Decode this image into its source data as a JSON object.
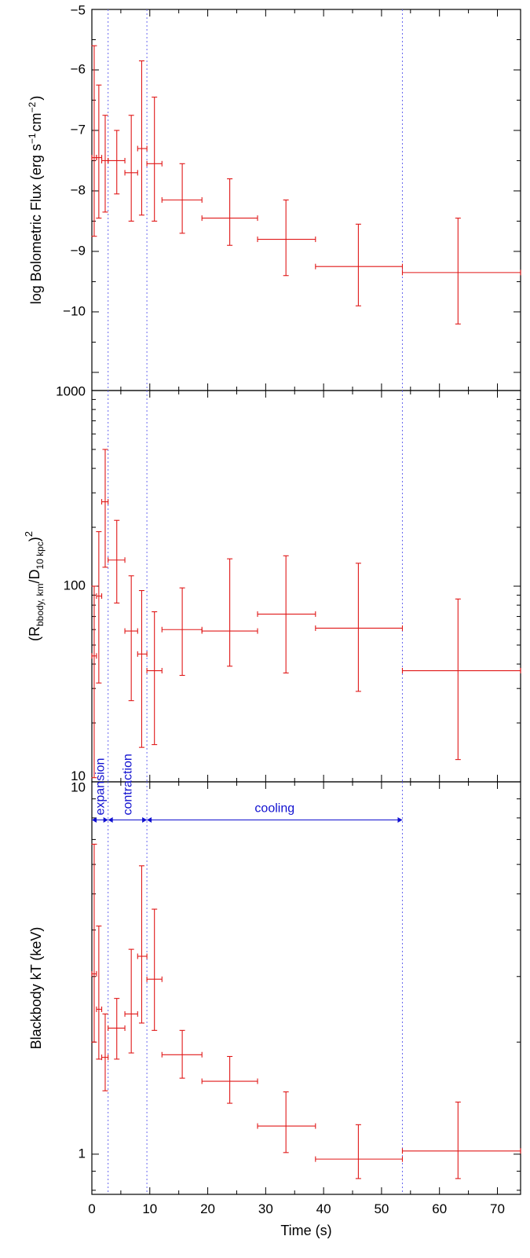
{
  "colors": {
    "data": "#e01818",
    "dividers": "#6a6af0",
    "phases": "#1010d0",
    "frame": "#000000"
  },
  "chart_data": [
    {
      "type": "scatter",
      "panel": "top",
      "xlabel": "",
      "ylabel": "log Bolometric Flux (erg s",
      "ylabel_parts": {
        "main": "log Bolometric Flux (erg s",
        "sup1": "−1",
        "mid": "cm",
        "sup2": "−2",
        "end": ")"
      },
      "xlim": [
        0,
        74
      ],
      "ylim": [
        -11.3,
        -5
      ],
      "yscale": "linear",
      "yticks": [
        -5,
        -6,
        -7,
        -8,
        -9,
        -10
      ],
      "yticklabels": [
        "−5",
        "−6",
        "−7",
        "−8",
        "−9",
        "−10"
      ],
      "points": [
        {
          "x": 0.4,
          "xlo": 0.0,
          "xhi": 0.8,
          "y": -7.45,
          "ylo": -8.75,
          "yhi": -5.6
        },
        {
          "x": 1.2,
          "xlo": 0.8,
          "xhi": 1.7,
          "y": -7.45,
          "ylo": -8.45,
          "yhi": -6.25
        },
        {
          "x": 2.3,
          "xlo": 1.7,
          "xhi": 2.8,
          "y": -7.5,
          "ylo": -8.35,
          "yhi": -6.75
        },
        {
          "x": 4.3,
          "xlo": 2.8,
          "xhi": 5.7,
          "y": -7.5,
          "ylo": -8.05,
          "yhi": -7.0
        },
        {
          "x": 6.8,
          "xlo": 5.7,
          "xhi": 7.9,
          "y": -7.7,
          "ylo": -8.5,
          "yhi": -6.75
        },
        {
          "x": 8.6,
          "xlo": 7.9,
          "xhi": 9.5,
          "y": -7.3,
          "ylo": -8.4,
          "yhi": -5.85
        },
        {
          "x": 10.8,
          "xlo": 9.5,
          "xhi": 12.1,
          "y": -7.55,
          "ylo": -8.5,
          "yhi": -6.45
        },
        {
          "x": 15.6,
          "xlo": 12.1,
          "xhi": 19.0,
          "y": -8.15,
          "ylo": -8.7,
          "yhi": -7.55
        },
        {
          "x": 23.8,
          "xlo": 19.0,
          "xhi": 28.6,
          "y": -8.45,
          "ylo": -8.9,
          "yhi": -7.8
        },
        {
          "x": 33.5,
          "xlo": 28.6,
          "xhi": 38.6,
          "y": -8.8,
          "ylo": -9.4,
          "yhi": -8.15
        },
        {
          "x": 46.0,
          "xlo": 38.6,
          "xhi": 53.6,
          "y": -9.25,
          "ylo": -9.9,
          "yhi": -8.55
        },
        {
          "x": 63.2,
          "xlo": 53.6,
          "xhi": 74.0,
          "y": -9.35,
          "ylo": -10.2,
          "yhi": -8.45
        }
      ]
    },
    {
      "type": "scatter",
      "panel": "middle",
      "xlabel": "",
      "ylabel": "(R",
      "ylabel_parts": {
        "main": "(R",
        "sub1": "bbody, km",
        "mid": "/D",
        "sub2": "10 kpc",
        "end": ")",
        "sup": "2"
      },
      "xlim": [
        0,
        74
      ],
      "ylim": [
        10,
        1000
      ],
      "yscale": "log",
      "yticks": [
        10,
        100,
        1000
      ],
      "yticklabels": [
        "10",
        "100",
        "1000"
      ],
      "points": [
        {
          "x": 0.4,
          "xlo": 0.0,
          "xhi": 0.8,
          "y": 44,
          "ylo": 10.5,
          "yhi": 100
        },
        {
          "x": 1.2,
          "xlo": 0.8,
          "xhi": 1.7,
          "y": 89,
          "ylo": 32,
          "yhi": 190
        },
        {
          "x": 2.3,
          "xlo": 1.7,
          "xhi": 2.8,
          "y": 270,
          "ylo": 125,
          "yhi": 500
        },
        {
          "x": 4.3,
          "xlo": 2.8,
          "xhi": 5.7,
          "y": 136,
          "ylo": 82,
          "yhi": 217
        },
        {
          "x": 6.8,
          "xlo": 5.7,
          "xhi": 7.9,
          "y": 59,
          "ylo": 26,
          "yhi": 113
        },
        {
          "x": 8.6,
          "xlo": 7.9,
          "xhi": 9.5,
          "y": 45,
          "ylo": 15,
          "yhi": 95
        },
        {
          "x": 10.8,
          "xlo": 9.5,
          "xhi": 12.1,
          "y": 37,
          "ylo": 15.5,
          "yhi": 74
        },
        {
          "x": 15.6,
          "xlo": 12.1,
          "xhi": 19.0,
          "y": 60,
          "ylo": 35,
          "yhi": 98
        },
        {
          "x": 23.8,
          "xlo": 19.0,
          "xhi": 28.6,
          "y": 59,
          "ylo": 39,
          "yhi": 138
        },
        {
          "x": 33.5,
          "xlo": 28.6,
          "xhi": 38.6,
          "y": 72,
          "ylo": 36,
          "yhi": 143
        },
        {
          "x": 46.0,
          "xlo": 38.6,
          "xhi": 53.6,
          "y": 61,
          "ylo": 29,
          "yhi": 131
        },
        {
          "x": 63.2,
          "xlo": 53.6,
          "xhi": 74.0,
          "y": 37,
          "ylo": 13,
          "yhi": 86
        }
      ]
    },
    {
      "type": "scatter",
      "panel": "bottom",
      "xlabel": "Time (s)",
      "ylabel": "Blackbody kT (keV)",
      "xlim": [
        0,
        74
      ],
      "ylim": [
        0.78,
        10
      ],
      "yscale": "log",
      "yticks": [
        1,
        10
      ],
      "yticklabels": [
        "1",
        "10"
      ],
      "xticks": [
        0,
        10,
        20,
        30,
        40,
        50,
        60,
        70
      ],
      "xticklabels": [
        "0",
        "10",
        "20",
        "30",
        "40",
        "50",
        "60",
        "70"
      ],
      "points": [
        {
          "x": 0.4,
          "xlo": 0.0,
          "xhi": 0.8,
          "y": 3.05,
          "ylo": 2.0,
          "yhi": 6.8
        },
        {
          "x": 1.2,
          "xlo": 0.8,
          "xhi": 1.7,
          "y": 2.45,
          "ylo": 1.8,
          "yhi": 4.1
        },
        {
          "x": 2.3,
          "xlo": 1.7,
          "xhi": 2.8,
          "y": 1.82,
          "ylo": 1.48,
          "yhi": 2.38
        },
        {
          "x": 4.3,
          "xlo": 2.8,
          "xhi": 5.7,
          "y": 2.18,
          "ylo": 1.8,
          "yhi": 2.62
        },
        {
          "x": 6.8,
          "xlo": 5.7,
          "xhi": 7.9,
          "y": 2.38,
          "ylo": 1.87,
          "yhi": 3.55
        },
        {
          "x": 8.6,
          "xlo": 7.9,
          "xhi": 9.5,
          "y": 3.4,
          "ylo": 2.25,
          "yhi": 5.95
        },
        {
          "x": 10.8,
          "xlo": 9.5,
          "xhi": 12.1,
          "y": 2.95,
          "ylo": 2.15,
          "yhi": 4.55
        },
        {
          "x": 15.6,
          "xlo": 12.1,
          "xhi": 19.0,
          "y": 1.85,
          "ylo": 1.6,
          "yhi": 2.15
        },
        {
          "x": 23.8,
          "xlo": 19.0,
          "xhi": 28.6,
          "y": 1.57,
          "ylo": 1.37,
          "yhi": 1.83
        },
        {
          "x": 33.5,
          "xlo": 28.6,
          "xhi": 38.6,
          "y": 1.19,
          "ylo": 1.01,
          "yhi": 1.47
        },
        {
          "x": 46.0,
          "xlo": 38.6,
          "xhi": 53.6,
          "y": 0.97,
          "ylo": 0.86,
          "yhi": 1.2
        },
        {
          "x": 63.2,
          "xlo": 53.6,
          "xhi": 74.0,
          "y": 1.02,
          "ylo": 0.86,
          "yhi": 1.38
        }
      ]
    }
  ],
  "phase_boundaries": [
    2.8,
    9.5,
    53.6
  ],
  "phases": [
    {
      "label": "expansion",
      "x_start": 0.0,
      "x_end": 2.8,
      "orientation": "vertical"
    },
    {
      "label": "contraction",
      "x_start": 2.8,
      "x_end": 9.5,
      "orientation": "vertical"
    },
    {
      "label": "cooling",
      "x_start": 9.5,
      "x_end": 53.6,
      "orientation": "horizontal"
    }
  ],
  "phase_arrow_y": 7.9
}
